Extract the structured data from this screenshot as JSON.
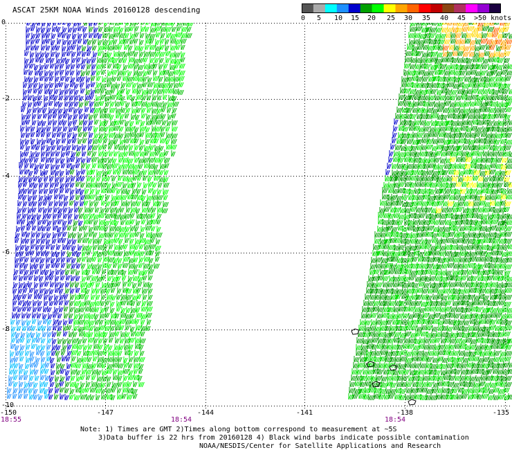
{
  "title": "ASCAT 25KM NOAA Winds 20160128 descending",
  "legend": {
    "colors": [
      "#555555",
      "#aaaaaa",
      "#00ffff",
      "#1e90ff",
      "#0000cd",
      "#00a000",
      "#00ff00",
      "#ffff00",
      "#ffa500",
      "#ff6400",
      "#ff0000",
      "#c00000",
      "#8b4513",
      "#b03060",
      "#ff00ff",
      "#9400d3",
      "#1a0040"
    ],
    "labels": [
      "0",
      "5",
      "10",
      "15",
      "20",
      "25",
      "30",
      "35",
      "40",
      "45"
    ],
    "max_label": ">50",
    "unit": "knots"
  },
  "axes": {
    "x_ticks": [
      "-150",
      "-147",
      "-144",
      "-141",
      "-138",
      "-135"
    ],
    "y_ticks": [
      "0",
      "-2",
      "-4",
      "-6",
      "-8",
      "-10"
    ],
    "time_labels": [
      "18:55",
      "18:54",
      "18:54"
    ]
  },
  "notes": [
    "Note: 1) Times are GMT 2)Times along bottom correspond to measurement at ~5S",
    "3)Data buffer is 22 hrs from 20160128 4) Black wind barbs indicate possible contamination",
    "NOAA/NESDIS/Center for Satellite Applications and Research"
  ]
}
